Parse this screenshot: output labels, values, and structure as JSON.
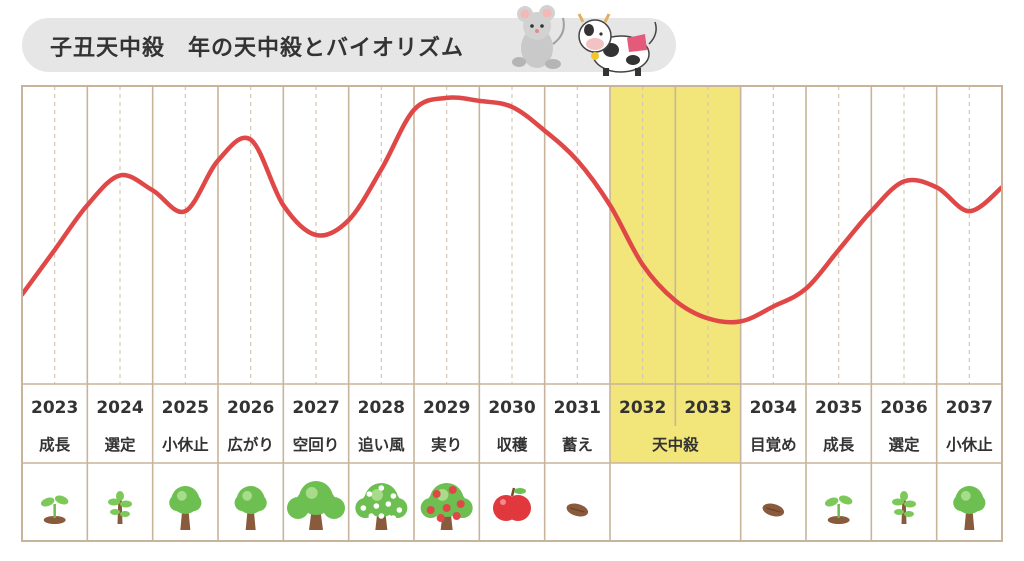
{
  "title": "子丑天中殺　年の天中殺とバイオリズム",
  "colors": {
    "curve": "#e04848",
    "frame": "#c8b49b",
    "highlight": "#f2e67a",
    "grid_dashed": "#d4c6b3"
  },
  "chart_data": {
    "type": "line",
    "title": "子丑天中殺　年の天中殺とバイオリズム",
    "xlabel": "",
    "ylabel": "",
    "grid": true,
    "categories": [
      "2023",
      "2024",
      "2025",
      "2026",
      "2027",
      "2028",
      "2029",
      "2030",
      "2031",
      "2032",
      "2033",
      "2034",
      "2035",
      "2036",
      "2037"
    ],
    "phase_labels": [
      "成長",
      "選定",
      "小休止",
      "広がり",
      "空回り",
      "追い風",
      "実り",
      "収穫",
      "蓄え",
      "天中殺",
      "天中殺",
      "目覚め",
      "成長",
      "選定",
      "小休止"
    ],
    "merged_label": "天中殺",
    "highlight_years": [
      "2032",
      "2033"
    ],
    "icons": [
      "sprout",
      "sapling",
      "small-tree",
      "small-tree",
      "large-tree",
      "flowering-tree",
      "fruit-tree",
      "apple",
      "seed",
      "",
      "",
      "seed",
      "sprout",
      "sapling",
      "small-tree"
    ],
    "series": [
      {
        "x": [
          2022.5,
          2023,
          2023.5,
          2024,
          2024.5,
          2025,
          2025.5,
          2026,
          2026.5,
          2027,
          2027.5,
          2028,
          2028.5,
          2029,
          2029.5,
          2030,
          2030.5,
          2031,
          2031.5,
          2032,
          2032.5,
          2033,
          2033.5,
          2034,
          2034.5,
          2035,
          2035.5,
          2036,
          2036.5,
          2037,
          2037.5
        ],
        "values": [
          30,
          45,
          60,
          70,
          65,
          58,
          75,
          82,
          60,
          50,
          55,
          72,
          92,
          96,
          95,
          93,
          85,
          75,
          60,
          40,
          28,
          22,
          21,
          26,
          32,
          45,
          58,
          68,
          66,
          58,
          66
        ]
      }
    ],
    "ylim": [
      0,
      100
    ]
  }
}
